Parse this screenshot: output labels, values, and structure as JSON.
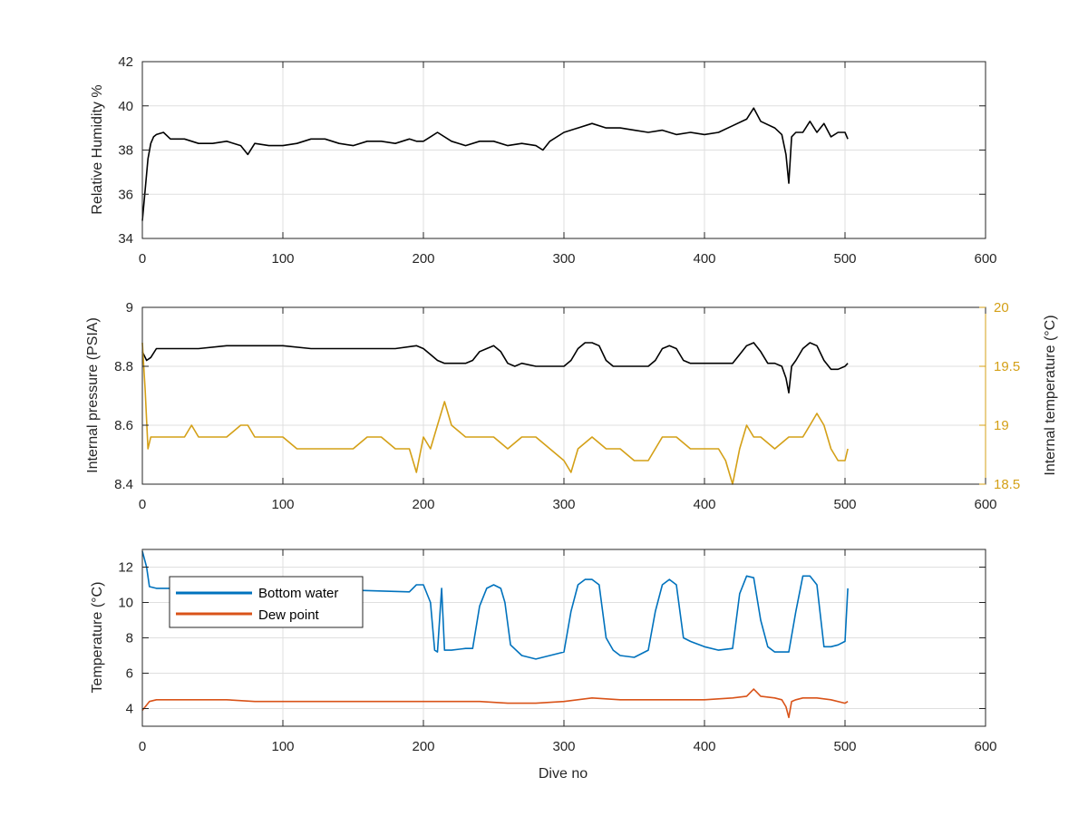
{
  "chart_data": [
    {
      "type": "line",
      "title": "",
      "xlabel": "",
      "ylabel": "Relative Humidity %",
      "xlim": [
        0,
        600
      ],
      "ylim": [
        34,
        42
      ],
      "xticks": [
        0,
        100,
        200,
        300,
        400,
        500,
        600
      ],
      "yticks": [
        34,
        36,
        38,
        40,
        42
      ],
      "grid": true,
      "series": [
        {
          "color": "#000000",
          "x": [
            0,
            2,
            4,
            6,
            8,
            10,
            15,
            20,
            30,
            40,
            50,
            60,
            70,
            75,
            80,
            90,
            100,
            110,
            120,
            130,
            140,
            150,
            160,
            170,
            180,
            190,
            195,
            200,
            205,
            210,
            220,
            230,
            240,
            250,
            260,
            270,
            280,
            285,
            290,
            300,
            310,
            320,
            330,
            340,
            350,
            360,
            370,
            380,
            390,
            400,
            410,
            420,
            430,
            435,
            440,
            450,
            455,
            458,
            460,
            462,
            465,
            470,
            475,
            480,
            485,
            490,
            495,
            500,
            502
          ],
          "values": [
            34.8,
            36.2,
            37.6,
            38.3,
            38.6,
            38.7,
            38.8,
            38.5,
            38.5,
            38.3,
            38.3,
            38.4,
            38.2,
            37.8,
            38.3,
            38.2,
            38.2,
            38.3,
            38.5,
            38.5,
            38.3,
            38.2,
            38.4,
            38.4,
            38.3,
            38.5,
            38.4,
            38.4,
            38.6,
            38.8,
            38.4,
            38.2,
            38.4,
            38.4,
            38.2,
            38.3,
            38.2,
            38.0,
            38.4,
            38.8,
            39.0,
            39.2,
            39.0,
            39.0,
            38.9,
            38.8,
            38.9,
            38.7,
            38.8,
            38.7,
            38.8,
            39.1,
            39.4,
            39.9,
            39.3,
            39.0,
            38.7,
            37.8,
            36.5,
            38.6,
            38.8,
            38.8,
            39.3,
            38.8,
            39.2,
            38.6,
            38.8,
            38.8,
            38.5
          ]
        }
      ]
    },
    {
      "type": "line",
      "title": "",
      "xlabel": "",
      "ylabel": "Internal pressure (PSIA)",
      "y2label": "Internal temperature (°C)",
      "xlim": [
        0,
        600
      ],
      "ylim": [
        8.4,
        9
      ],
      "y2lim": [
        18.5,
        20
      ],
      "xticks": [
        0,
        100,
        200,
        300,
        400,
        500,
        600
      ],
      "yticks": [
        8.4,
        8.6,
        8.8,
        9
      ],
      "y2ticks": [
        18.5,
        19,
        19.5,
        20
      ],
      "y2color": "#D4A017",
      "grid": true,
      "series": [
        {
          "axis": "left",
          "color": "#000000",
          "x": [
            0,
            3,
            6,
            10,
            20,
            40,
            60,
            80,
            100,
            120,
            140,
            160,
            180,
            195,
            200,
            205,
            210,
            215,
            220,
            230,
            235,
            240,
            245,
            250,
            255,
            260,
            265,
            270,
            280,
            290,
            300,
            305,
            310,
            315,
            320,
            325,
            330,
            335,
            340,
            350,
            360,
            365,
            370,
            375,
            380,
            385,
            390,
            400,
            410,
            420,
            425,
            430,
            435,
            440,
            445,
            450,
            455,
            458,
            460,
            462,
            465,
            470,
            475,
            480,
            485,
            490,
            495,
            500,
            502
          ],
          "values": [
            8.85,
            8.82,
            8.83,
            8.86,
            8.86,
            8.86,
            8.87,
            8.87,
            8.87,
            8.86,
            8.86,
            8.86,
            8.86,
            8.87,
            8.86,
            8.84,
            8.82,
            8.81,
            8.81,
            8.81,
            8.82,
            8.85,
            8.86,
            8.87,
            8.85,
            8.81,
            8.8,
            8.81,
            8.8,
            8.8,
            8.8,
            8.82,
            8.86,
            8.88,
            8.88,
            8.87,
            8.82,
            8.8,
            8.8,
            8.8,
            8.8,
            8.82,
            8.86,
            8.87,
            8.86,
            8.82,
            8.81,
            8.81,
            8.81,
            8.81,
            8.84,
            8.87,
            8.88,
            8.85,
            8.81,
            8.81,
            8.8,
            8.76,
            8.71,
            8.8,
            8.82,
            8.86,
            8.88,
            8.87,
            8.82,
            8.79,
            8.79,
            8.8,
            8.81
          ]
        },
        {
          "axis": "right",
          "color": "#D4A017",
          "x": [
            0,
            2,
            4,
            6,
            10,
            20,
            30,
            35,
            40,
            50,
            60,
            70,
            75,
            80,
            90,
            100,
            110,
            120,
            130,
            140,
            150,
            160,
            170,
            180,
            190,
            195,
            200,
            205,
            210,
            215,
            220,
            230,
            240,
            250,
            260,
            270,
            280,
            290,
            300,
            305,
            310,
            320,
            330,
            340,
            350,
            360,
            370,
            380,
            390,
            400,
            410,
            415,
            420,
            425,
            430,
            435,
            440,
            450,
            460,
            470,
            475,
            480,
            485,
            490,
            495,
            500,
            502
          ],
          "values": [
            19.7,
            19.3,
            18.8,
            18.9,
            18.9,
            18.9,
            18.9,
            19.0,
            18.9,
            18.9,
            18.9,
            19.0,
            19.0,
            18.9,
            18.9,
            18.9,
            18.8,
            18.8,
            18.8,
            18.8,
            18.8,
            18.9,
            18.9,
            18.8,
            18.8,
            18.6,
            18.9,
            18.8,
            19.0,
            19.2,
            19.0,
            18.9,
            18.9,
            18.9,
            18.8,
            18.9,
            18.9,
            18.8,
            18.7,
            18.6,
            18.8,
            18.9,
            18.8,
            18.8,
            18.7,
            18.7,
            18.9,
            18.9,
            18.8,
            18.8,
            18.8,
            18.7,
            18.5,
            18.8,
            19.0,
            18.9,
            18.9,
            18.8,
            18.9,
            18.9,
            19.0,
            19.1,
            19.0,
            18.8,
            18.7,
            18.7,
            18.8
          ]
        }
      ]
    },
    {
      "type": "line",
      "title": "",
      "xlabel": "Dive no",
      "ylabel": "Temperature (°C)",
      "xlim": [
        0,
        600
      ],
      "ylim": [
        3,
        13
      ],
      "xticks": [
        0,
        100,
        200,
        300,
        400,
        500,
        600
      ],
      "yticks": [
        4,
        6,
        8,
        10,
        12
      ],
      "grid": true,
      "legend": "top-left",
      "series": [
        {
          "name": "Bottom water",
          "color": "#0072BD",
          "x": [
            0,
            3,
            5,
            10,
            50,
            100,
            150,
            190,
            195,
            200,
            205,
            208,
            210,
            213,
            215,
            217,
            220,
            230,
            235,
            240,
            245,
            250,
            255,
            258,
            262,
            270,
            280,
            290,
            300,
            305,
            310,
            315,
            320,
            325,
            330,
            335,
            340,
            350,
            360,
            365,
            370,
            375,
            380,
            385,
            390,
            400,
            410,
            420,
            425,
            430,
            435,
            440,
            445,
            450,
            460,
            465,
            470,
            475,
            480,
            485,
            490,
            495,
            500,
            502
          ],
          "values": [
            12.9,
            12.0,
            10.9,
            10.8,
            10.8,
            10.7,
            10.7,
            10.6,
            11.0,
            11.0,
            10.0,
            7.3,
            7.2,
            10.8,
            7.3,
            7.3,
            7.3,
            7.4,
            7.4,
            9.8,
            10.8,
            11.0,
            10.8,
            10.0,
            7.6,
            7.0,
            6.8,
            7.0,
            7.2,
            9.5,
            11.0,
            11.3,
            11.3,
            11.0,
            8.0,
            7.3,
            7.0,
            6.9,
            7.3,
            9.5,
            11.0,
            11.3,
            11.0,
            8.0,
            7.8,
            7.5,
            7.3,
            7.4,
            10.5,
            11.5,
            11.4,
            9.0,
            7.5,
            7.2,
            7.2,
            9.5,
            11.5,
            11.5,
            11.0,
            7.5,
            7.5,
            7.6,
            7.8,
            10.8
          ]
        },
        {
          "name": "Dew point",
          "color": "#D95319",
          "x": [
            0,
            3,
            5,
            10,
            20,
            40,
            60,
            80,
            100,
            120,
            140,
            160,
            180,
            200,
            220,
            240,
            260,
            280,
            300,
            320,
            340,
            360,
            380,
            400,
            420,
            430,
            435,
            440,
            450,
            455,
            458,
            460,
            462,
            465,
            470,
            480,
            490,
            500,
            502
          ],
          "values": [
            3.9,
            4.2,
            4.4,
            4.5,
            4.5,
            4.5,
            4.5,
            4.4,
            4.4,
            4.4,
            4.4,
            4.4,
            4.4,
            4.4,
            4.4,
            4.4,
            4.3,
            4.3,
            4.4,
            4.6,
            4.5,
            4.5,
            4.5,
            4.5,
            4.6,
            4.7,
            5.1,
            4.7,
            4.6,
            4.5,
            4.1,
            3.5,
            4.4,
            4.5,
            4.6,
            4.6,
            4.5,
            4.3,
            4.4
          ]
        }
      ]
    }
  ]
}
